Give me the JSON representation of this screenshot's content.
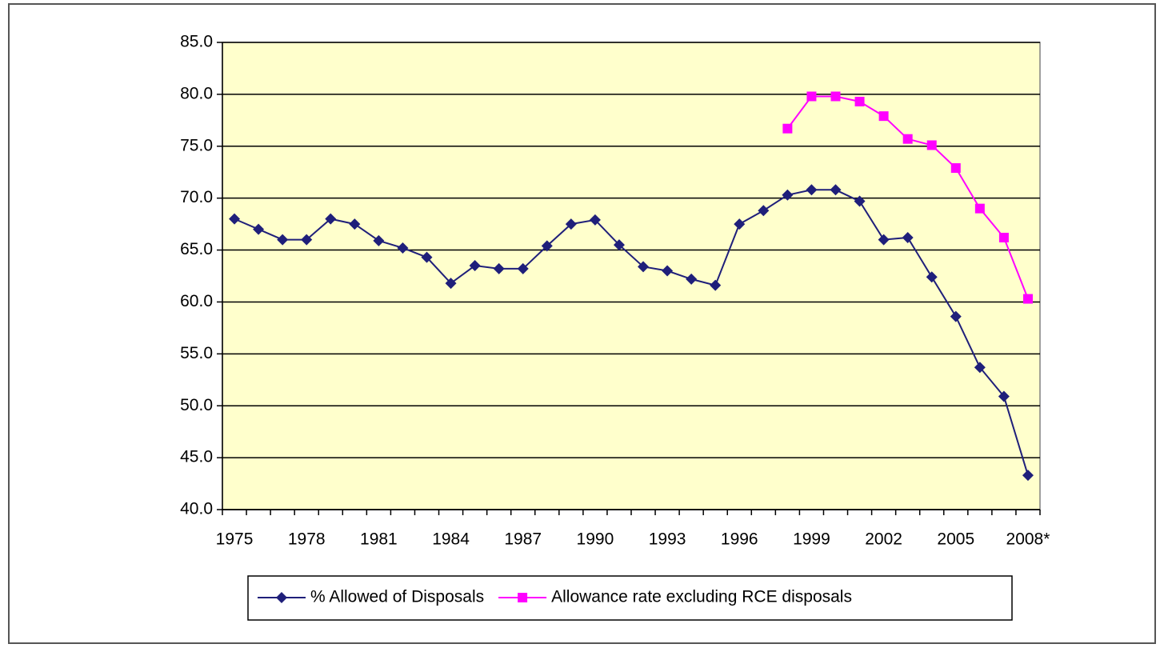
{
  "chart_data": {
    "type": "line",
    "categories": [
      "1975",
      null,
      null,
      "1978",
      null,
      null,
      "1981",
      null,
      null,
      "1984",
      null,
      null,
      "1987",
      null,
      null,
      "1990",
      null,
      null,
      "1993",
      null,
      null,
      "1996",
      null,
      null,
      "1999",
      null,
      null,
      "2002",
      null,
      null,
      "2005",
      null,
      null,
      "2008*"
    ],
    "series": [
      {
        "name": "% Allowed of Disposals",
        "color": "#1f1f7a",
        "marker": "diamond",
        "values": [
          68.0,
          67.0,
          66.0,
          66.0,
          68.0,
          67.5,
          65.9,
          65.2,
          64.3,
          61.8,
          63.5,
          63.2,
          63.2,
          65.4,
          67.5,
          67.9,
          65.5,
          63.4,
          63.0,
          62.2,
          61.6,
          67.5,
          68.8,
          70.3,
          70.8,
          70.8,
          69.7,
          66.0,
          66.2,
          62.4,
          58.6,
          53.7,
          50.9,
          43.3
        ]
      },
      {
        "name": "Allowance rate excluding RCE disposals",
        "color": "#ff00ff",
        "marker": "square",
        "values": [
          null,
          null,
          null,
          null,
          null,
          null,
          null,
          null,
          null,
          null,
          null,
          null,
          null,
          null,
          null,
          null,
          null,
          null,
          null,
          null,
          null,
          null,
          null,
          76.7,
          79.8,
          79.8,
          79.3,
          77.9,
          75.7,
          75.1,
          72.9,
          69.0,
          66.2,
          60.3
        ]
      }
    ],
    "ylim": [
      40,
      85
    ],
    "yticks": [
      {
        "value": 40,
        "label": "40.0"
      },
      {
        "value": 45,
        "label": "45.0"
      },
      {
        "value": 50,
        "label": "50.0"
      },
      {
        "value": 55,
        "label": "55.0"
      },
      {
        "value": 60,
        "label": "60.0"
      },
      {
        "value": 65,
        "label": "65.0"
      },
      {
        "value": 70,
        "label": "70.0"
      },
      {
        "value": 75,
        "label": "75.0"
      },
      {
        "value": 80,
        "label": "80.0"
      },
      {
        "value": 85,
        "label": "85.0"
      }
    ],
    "grid": true,
    "plot_background": "#ffffcc",
    "legend": "bottom"
  }
}
